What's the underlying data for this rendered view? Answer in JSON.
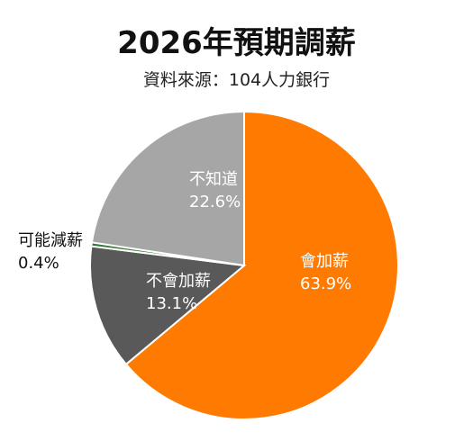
{
  "title": "2026年預期調薪",
  "subtitle": "資料來源：104人力銀行",
  "chart_data": {
    "type": "pie",
    "title": "2026年預期調薪",
    "subtitle": "資料來源：104人力銀行",
    "slices": [
      {
        "label": "會加薪",
        "value": 63.9,
        "display": "63.9%",
        "color": "#ff7a00",
        "text_color": "#ffffff"
      },
      {
        "label": "不會加薪",
        "value": 13.1,
        "display": "13.1%",
        "color": "#595959",
        "text_color": "#ffffff"
      },
      {
        "label": "可能減薪",
        "value": 0.4,
        "display": "0.4%",
        "color": "#2e7d32",
        "text_color": "#111111"
      },
      {
        "label": "不知道",
        "value": 22.6,
        "display": "22.6%",
        "color": "#a6a6a6",
        "text_color": "#ffffff"
      }
    ],
    "start_angle": "12 o'clock",
    "direction": "clockwise",
    "legend": "none"
  }
}
